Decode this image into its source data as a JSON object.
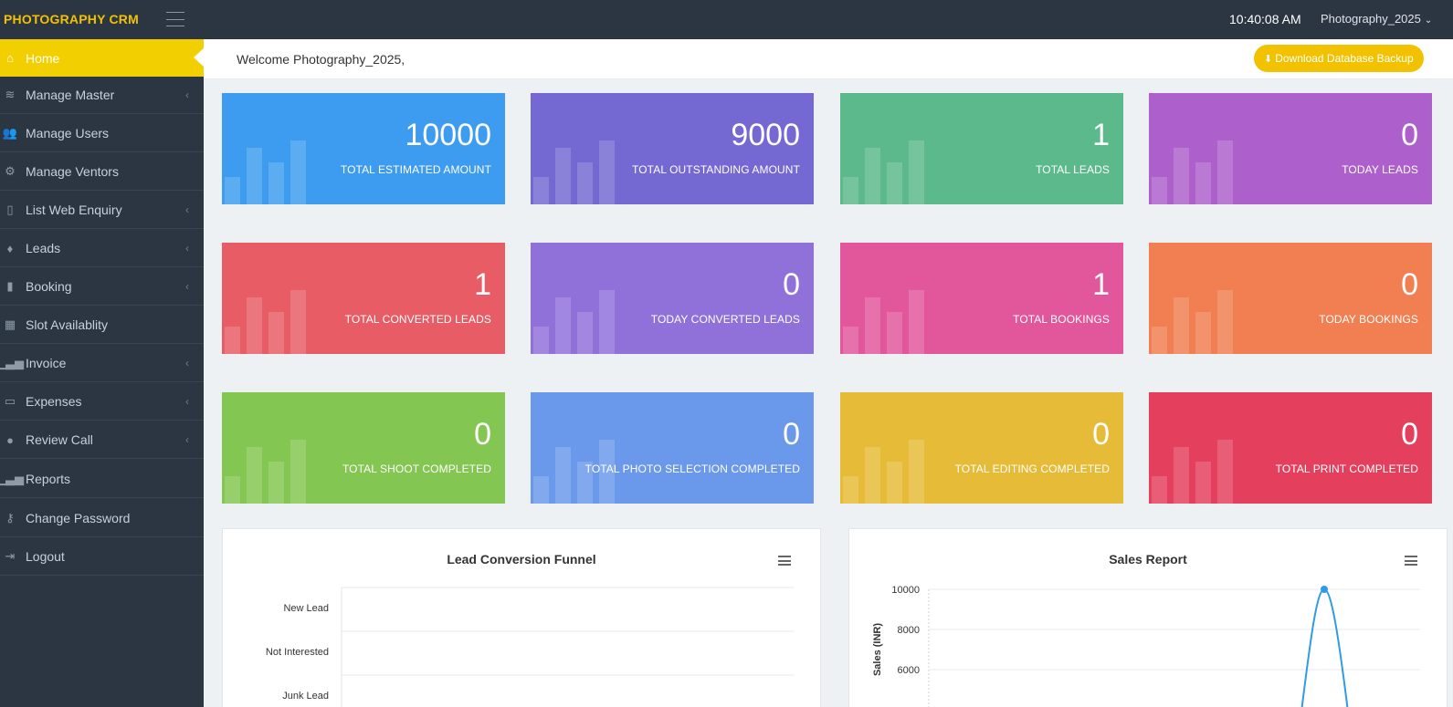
{
  "header": {
    "brand": "PHOTOGRAPHY CRM",
    "clock": "10:40:08 AM",
    "user": "Photography_2025",
    "user_chevron": "⌄"
  },
  "sidebar": {
    "items": [
      {
        "label": "Home",
        "icon": "home-icon",
        "glyph": "⌂",
        "has_arrow": false,
        "active": true
      },
      {
        "label": "Manage Master",
        "icon": "layers-icon",
        "glyph": "≋",
        "has_arrow": true
      },
      {
        "label": "Manage Users",
        "icon": "users-icon",
        "glyph": "👥",
        "has_arrow": false
      },
      {
        "label": "Manage Ventors",
        "icon": "cogs-icon",
        "glyph": "⚙",
        "has_arrow": false
      },
      {
        "label": "List Web Enquiry",
        "icon": "tablet-icon",
        "glyph": "▯",
        "has_arrow": true
      },
      {
        "label": "Leads",
        "icon": "diamond-icon",
        "glyph": "♦",
        "has_arrow": true
      },
      {
        "label": "Booking",
        "icon": "bookmark-icon",
        "glyph": "▮",
        "has_arrow": true
      },
      {
        "label": "Slot Availablity",
        "icon": "calendar-icon",
        "glyph": "▦",
        "has_arrow": false
      },
      {
        "label": "Invoice",
        "icon": "bar-chart-icon",
        "glyph": "▁▃▅",
        "has_arrow": true
      },
      {
        "label": "Expenses",
        "icon": "money-icon",
        "glyph": "▭",
        "has_arrow": true
      },
      {
        "label": "Review Call",
        "icon": "comments-icon",
        "glyph": "●",
        "has_arrow": true
      },
      {
        "label": "Reports",
        "icon": "bar-chart-icon",
        "glyph": "▁▃▅",
        "has_arrow": false
      },
      {
        "label": "Change Password",
        "icon": "key-icon",
        "glyph": "⚷",
        "has_arrow": false
      },
      {
        "label": "Logout",
        "icon": "sign-out-icon",
        "glyph": "⇥",
        "has_arrow": false
      }
    ],
    "arrow_glyph": "‹"
  },
  "welcome": {
    "text": "Welcome Photography_2025,",
    "backup_label": "Download Database Backup",
    "backup_icon": "download-icon"
  },
  "cards": [
    {
      "value": "10000",
      "label": "TOTAL ESTIMATED AMOUNT",
      "color": "#3d9cf0"
    },
    {
      "value": "9000",
      "label": "TOTAL OUTSTANDING AMOUNT",
      "color": "#7469d2"
    },
    {
      "value": "1",
      "label": "TOTAL LEADS",
      "color": "#5bb98c"
    },
    {
      "value": "0",
      "label": "TODAY LEADS",
      "color": "#ad60cb"
    },
    {
      "value": "1",
      "label": "TOTAL CONVERTED LEADS",
      "color": "#e85c66"
    },
    {
      "value": "0",
      "label": "TODAY CONVERTED LEADS",
      "color": "#9071da"
    },
    {
      "value": "1",
      "label": "TOTAL BOOKINGS",
      "color": "#e2569b"
    },
    {
      "value": "0",
      "label": "TODAY BOOKINGS",
      "color": "#f17f52"
    },
    {
      "value": "0",
      "label": "TOTAL SHOOT COMPLETED",
      "color": "#84c652"
    },
    {
      "value": "0",
      "label": "TOTAL PHOTO SELECTION COMPLETED",
      "color": "#6a98ea"
    },
    {
      "value": "0",
      "label": "TOTAL EDITING COMPLETED",
      "color": "#e6bb37"
    },
    {
      "value": "0",
      "label": "TOTAL PRINT COMPLETED",
      "color": "#e4405d"
    }
  ],
  "chart_data": [
    {
      "type": "bar",
      "title": "Lead Conversion Funnel",
      "orientation": "horizontal",
      "categories": [
        "New Lead",
        "Not Interested",
        "Junk Lead"
      ],
      "values": [
        0,
        0,
        0
      ],
      "grid": true
    },
    {
      "type": "line",
      "title": "Sales Report",
      "ylabel": "Sales (INR)",
      "yticks": [
        "10000",
        "8000",
        "6000"
      ],
      "ylim": [
        0,
        10000
      ],
      "series": [
        {
          "color": "#2f9be6",
          "peak_value": 10000
        }
      ],
      "grid": true
    }
  ]
}
